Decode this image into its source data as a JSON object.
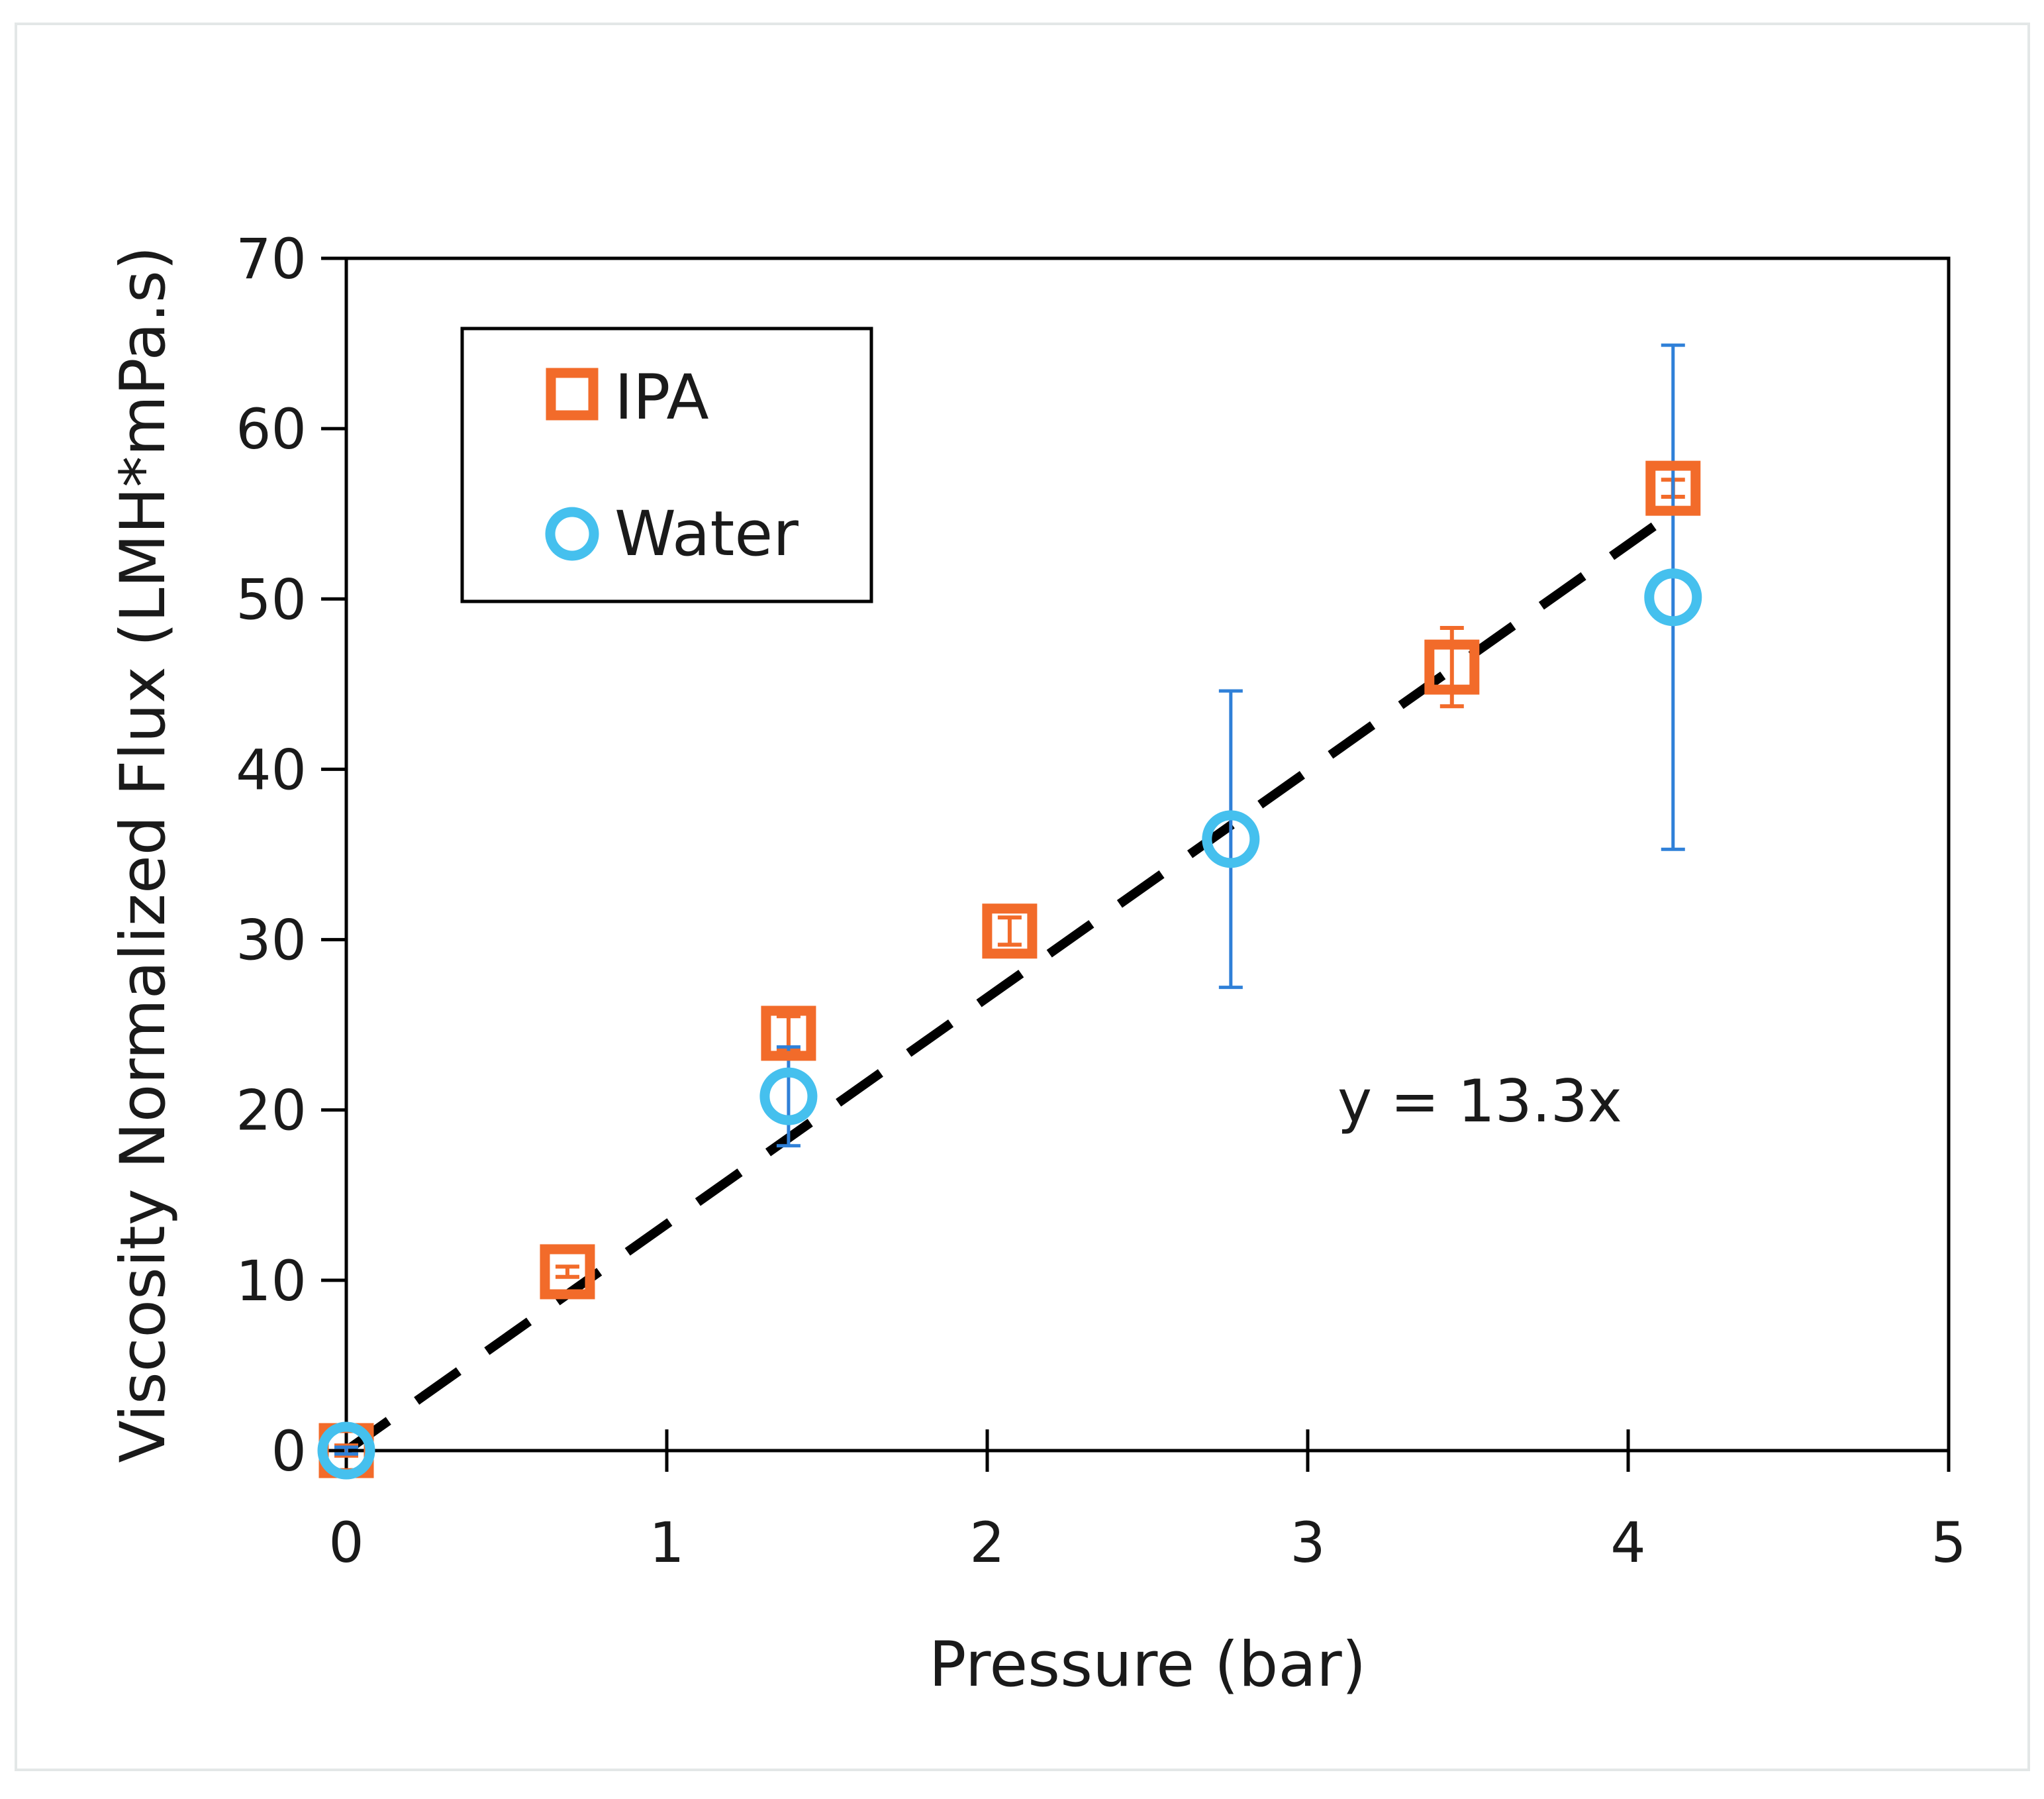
{
  "chart_data": {
    "type": "scatter",
    "title": "",
    "xlabel": "Pressure (bar)",
    "ylabel": "Viscosity Normalized Flux (LMH*mPa.s)",
    "xlim": [
      0,
      5
    ],
    "ylim": [
      0,
      70
    ],
    "x_ticks": [
      "0",
      "1",
      "2",
      "3",
      "4",
      "5"
    ],
    "y_ticks": [
      "0",
      "10",
      "20",
      "30",
      "40",
      "50",
      "60",
      "70"
    ],
    "grid": false,
    "legend_position": "top-left",
    "series": [
      {
        "name": "IPA",
        "marker": "square",
        "color": "#f26b2a",
        "points": [
          {
            "x": 0,
            "y": 0,
            "err": 0.3
          },
          {
            "x": 0.69,
            "y": 10.5,
            "err": 0.3
          },
          {
            "x": 1.38,
            "y": 24.5,
            "err": 1.0
          },
          {
            "x": 2.07,
            "y": 30.5,
            "err": 0.8
          },
          {
            "x": 3.45,
            "y": 46,
            "err": 2.3
          },
          {
            "x": 4.14,
            "y": 56.5,
            "err": 0.5
          }
        ]
      },
      {
        "name": "Water",
        "marker": "circle",
        "color": "#45c0ee",
        "error_color": "#2f80d8",
        "points": [
          {
            "x": 0,
            "y": 0,
            "err": 0.2
          },
          {
            "x": 1.38,
            "y": 20.8,
            "err": 2.9
          },
          {
            "x": 2.76,
            "y": 35.9,
            "err": 8.7
          },
          {
            "x": 4.14,
            "y": 50.1,
            "err": 14.8
          }
        ]
      }
    ],
    "trendline": {
      "slope": 13.3,
      "x_range": [
        0,
        4.14
      ],
      "style": "dashed",
      "color": "#000000",
      "equation_label": "y = 13.3x"
    }
  }
}
